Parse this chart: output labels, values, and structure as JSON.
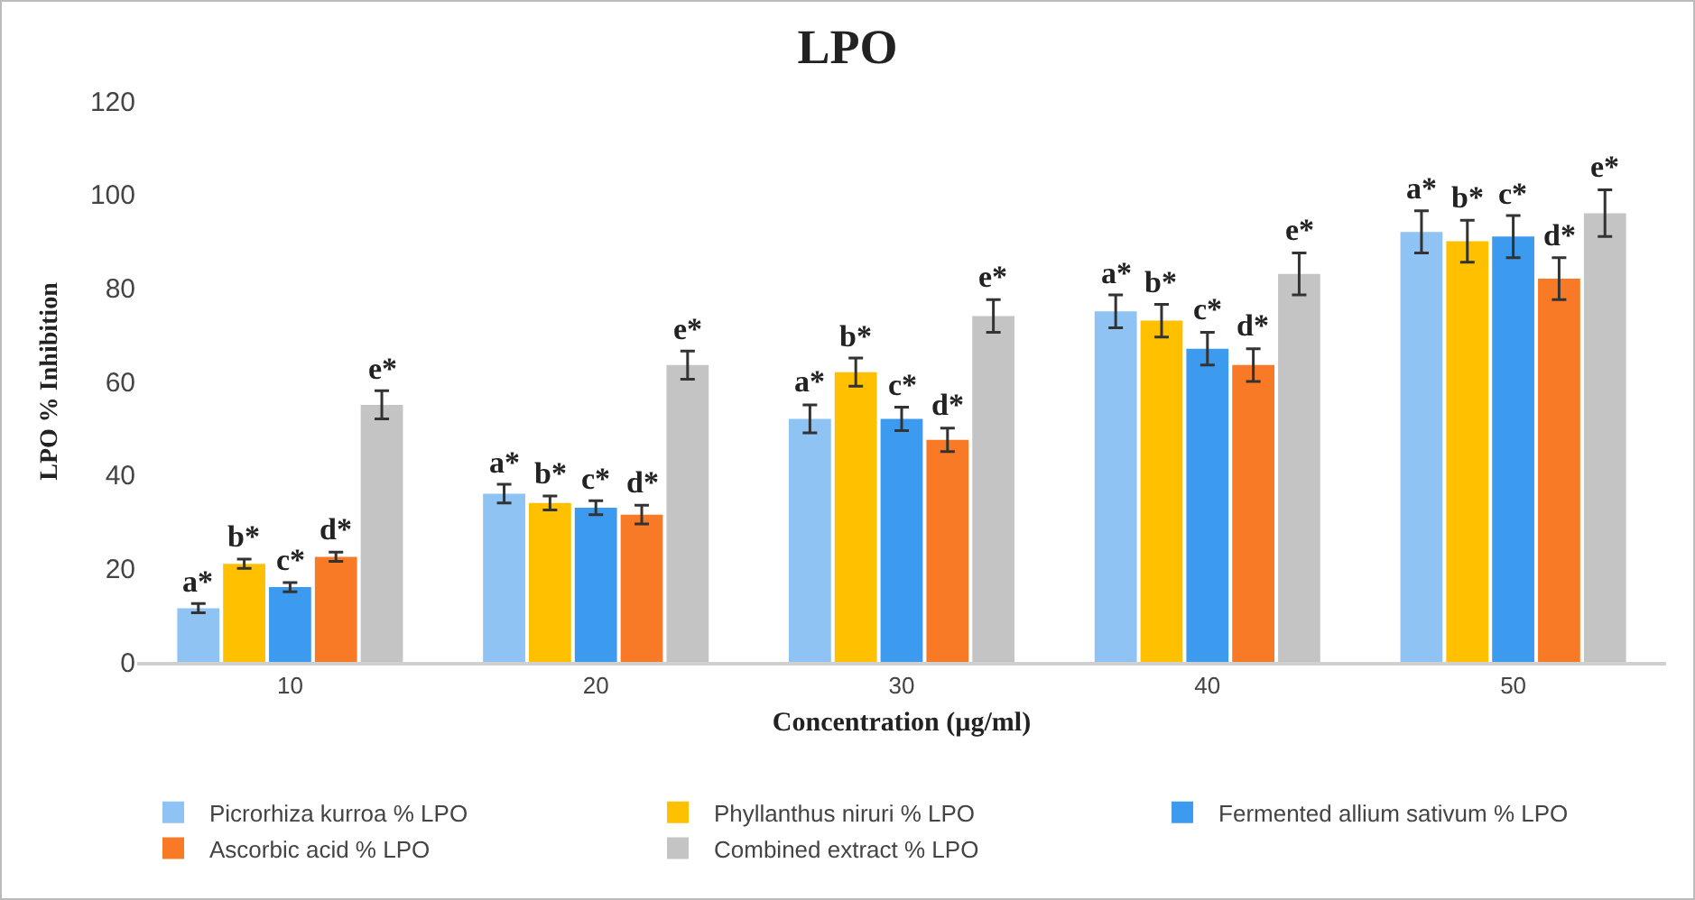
{
  "chart_data": {
    "type": "bar",
    "title": "LPO",
    "xlabel": "Concentration (µg/ml)",
    "ylabel": "LPO % Inhibition",
    "categories": [
      "10",
      "20",
      "30",
      "40",
      "50"
    ],
    "ylim": [
      0,
      120
    ],
    "yticks": [
      0,
      20,
      40,
      60,
      80,
      100,
      120
    ],
    "grid": false,
    "legend": "bottom",
    "series": [
      {
        "name": "Picrorhiza kurroa % LPO",
        "color": "#8ec3f4",
        "values": [
          11.5,
          36,
          52,
          75,
          92
        ],
        "errors": [
          1,
          2,
          3,
          3.5,
          4.5
        ],
        "value_labels": [
          "a*",
          "a*",
          "a*",
          "a*",
          "a*"
        ]
      },
      {
        "name": "Phyllanthus niruri % LPO",
        "color": "#ffc000",
        "values": [
          21,
          34,
          62,
          73,
          90
        ],
        "errors": [
          1,
          1.5,
          3,
          3.5,
          4.5
        ],
        "value_labels": [
          "b*",
          "b*",
          "b*",
          "b*",
          "b*"
        ]
      },
      {
        "name": "Fermented allium sativum % LPO",
        "color": "#3d9bef",
        "values": [
          16,
          33,
          52,
          67,
          91
        ],
        "errors": [
          1,
          1.5,
          2.5,
          3.5,
          4.5
        ],
        "value_labels": [
          "c*",
          "c*",
          "c*",
          "c*",
          "c*"
        ]
      },
      {
        "name": "Ascorbic acid % LPO",
        "color": "#f87a27",
        "values": [
          22.5,
          31.5,
          47.5,
          63.5,
          82
        ],
        "errors": [
          1,
          2,
          2.5,
          3.5,
          4.5
        ],
        "value_labels": [
          "d*",
          "d*",
          "d*",
          "d*",
          "d*"
        ]
      },
      {
        "name": "Combined extract % LPO",
        "color": "#c4c4c4",
        "values": [
          55,
          63.5,
          74,
          83,
          96
        ],
        "errors": [
          3,
          3,
          3.5,
          4.5,
          5
        ],
        "value_labels": [
          "e*",
          "e*",
          "e*",
          "e*",
          "e*"
        ]
      }
    ]
  }
}
